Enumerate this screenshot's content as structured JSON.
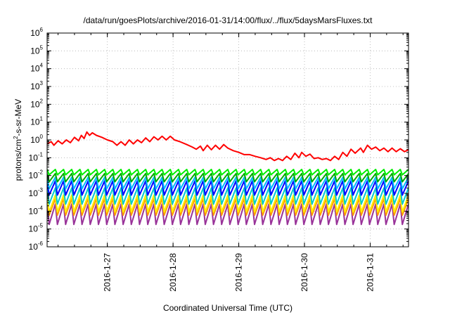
{
  "chart_data": {
    "type": "line",
    "title": "/data/run/goesPlots/archive/2016-01-31/14:00/flux/../flux/5daysMarsFluxes.txt",
    "xlabel": "Coordinated Universal Time (UTC)",
    "ylabel_parts": [
      "protons/cm",
      "2",
      "-s-sr-MeV"
    ],
    "y_scale": "log",
    "ylim": [
      1e-06,
      1000000.0
    ],
    "y_ticks": [
      {
        "base": "10",
        "exp": "-6",
        "value": 1e-06
      },
      {
        "base": "10",
        "exp": "-5",
        "value": 1e-05
      },
      {
        "base": "10",
        "exp": "-4",
        "value": 0.0001
      },
      {
        "base": "10",
        "exp": "-3",
        "value": 0.001
      },
      {
        "base": "10",
        "exp": "-2",
        "value": 0.01
      },
      {
        "base": "10",
        "exp": "-1",
        "value": 0.1
      },
      {
        "base": "10",
        "exp": "0",
        "value": 1
      },
      {
        "base": "10",
        "exp": "1",
        "value": 10
      },
      {
        "base": "10",
        "exp": "2",
        "value": 100
      },
      {
        "base": "10",
        "exp": "3",
        "value": 1000
      },
      {
        "base": "10",
        "exp": "4",
        "value": 10000
      },
      {
        "base": "10",
        "exp": "5",
        "value": 100000
      },
      {
        "base": "10",
        "exp": "6",
        "value": 1000000
      }
    ],
    "xlim": [
      "2016-01-26T02:00",
      "2016-01-31T14:00"
    ],
    "x_ticks": [
      {
        "label": "2016-1-27",
        "value": "2016-01-27T00:00"
      },
      {
        "label": "2016-1-28",
        "value": "2016-01-28T00:00"
      },
      {
        "label": "2016-1-29",
        "value": "2016-01-29T00:00"
      },
      {
        "label": "2016-1-30",
        "value": "2016-01-30T00:00"
      },
      {
        "label": "2016-1-31",
        "value": "2016-01-31T00:00"
      }
    ],
    "grid": true,
    "series": [
      {
        "color": "#ff0000",
        "points": [
          [
            "2016-01-26T02:00",
            0.6
          ],
          [
            "2016-01-26T03:30",
            0.8
          ],
          [
            "2016-01-26T04:30",
            0.5
          ],
          [
            "2016-01-26T06:00",
            0.9
          ],
          [
            "2016-01-26T07:30",
            0.6
          ],
          [
            "2016-01-26T09:00",
            1.0
          ],
          [
            "2016-01-26T10:30",
            0.7
          ],
          [
            "2016-01-26T12:00",
            1.4
          ],
          [
            "2016-01-26T13:30",
            0.9
          ],
          [
            "2016-01-26T14:30",
            1.8
          ],
          [
            "2016-01-26T15:30",
            1.2
          ],
          [
            "2016-01-26T16:30",
            2.8
          ],
          [
            "2016-01-26T17:30",
            1.8
          ],
          [
            "2016-01-26T18:30",
            2.5
          ],
          [
            "2016-01-26T20:00",
            1.8
          ],
          [
            "2016-01-26T22:00",
            1.4
          ],
          [
            "2016-01-27T00:00",
            1.0
          ],
          [
            "2016-01-27T02:00",
            0.8
          ],
          [
            "2016-01-27T03:30",
            0.5
          ],
          [
            "2016-01-27T05:00",
            0.8
          ],
          [
            "2016-01-27T06:30",
            0.5
          ],
          [
            "2016-01-27T08:00",
            1.0
          ],
          [
            "2016-01-27T09:30",
            0.6
          ],
          [
            "2016-01-27T11:00",
            1.0
          ],
          [
            "2016-01-27T12:30",
            0.7
          ],
          [
            "2016-01-27T14:00",
            1.3
          ],
          [
            "2016-01-27T15:30",
            0.8
          ],
          [
            "2016-01-27T17:00",
            1.5
          ],
          [
            "2016-01-27T18:30",
            1.0
          ],
          [
            "2016-01-27T20:00",
            1.6
          ],
          [
            "2016-01-27T21:30",
            1.0
          ],
          [
            "2016-01-27T23:00",
            1.6
          ],
          [
            "2016-01-28T00:30",
            1.0
          ],
          [
            "2016-01-28T02:30",
            0.8
          ],
          [
            "2016-01-28T05:00",
            0.55
          ],
          [
            "2016-01-28T07:00",
            0.4
          ],
          [
            "2016-01-28T08:30",
            0.3
          ],
          [
            "2016-01-28T10:00",
            0.45
          ],
          [
            "2016-01-28T11:00",
            0.25
          ],
          [
            "2016-01-28T12:30",
            0.5
          ],
          [
            "2016-01-28T14:00",
            0.28
          ],
          [
            "2016-01-28T15:30",
            0.5
          ],
          [
            "2016-01-28T17:00",
            0.3
          ],
          [
            "2016-01-28T18:30",
            0.55
          ],
          [
            "2016-01-28T20:00",
            0.35
          ],
          [
            "2016-01-28T22:00",
            0.25
          ],
          [
            "2016-01-29T00:00",
            0.2
          ],
          [
            "2016-01-29T02:00",
            0.15
          ],
          [
            "2016-01-29T04:00",
            0.15
          ],
          [
            "2016-01-29T06:00",
            0.12
          ],
          [
            "2016-01-29T08:00",
            0.1
          ],
          [
            "2016-01-29T10:00",
            0.08
          ],
          [
            "2016-01-29T11:30",
            0.1
          ],
          [
            "2016-01-29T13:00",
            0.07
          ],
          [
            "2016-01-29T14:30",
            0.09
          ],
          [
            "2016-01-29T16:00",
            0.07
          ],
          [
            "2016-01-29T17:30",
            0.12
          ],
          [
            "2016-01-29T19:00",
            0.08
          ],
          [
            "2016-01-29T20:30",
            0.18
          ],
          [
            "2016-01-29T22:00",
            0.1
          ],
          [
            "2016-01-29T23:00",
            0.2
          ],
          [
            "2016-01-30T00:30",
            0.12
          ],
          [
            "2016-01-30T02:00",
            0.16
          ],
          [
            "2016-01-30T03:30",
            0.09
          ],
          [
            "2016-01-30T05:00",
            0.1
          ],
          [
            "2016-01-30T06:30",
            0.08
          ],
          [
            "2016-01-30T08:00",
            0.09
          ],
          [
            "2016-01-30T09:30",
            0.07
          ],
          [
            "2016-01-30T11:00",
            0.12
          ],
          [
            "2016-01-30T12:30",
            0.08
          ],
          [
            "2016-01-30T14:00",
            0.2
          ],
          [
            "2016-01-30T15:30",
            0.12
          ],
          [
            "2016-01-30T17:00",
            0.3
          ],
          [
            "2016-01-30T18:30",
            0.18
          ],
          [
            "2016-01-30T20:30",
            0.35
          ],
          [
            "2016-01-30T21:30",
            0.2
          ],
          [
            "2016-01-30T23:00",
            0.5
          ],
          [
            "2016-01-31T00:30",
            0.3
          ],
          [
            "2016-01-31T02:00",
            0.4
          ],
          [
            "2016-01-31T03:30",
            0.25
          ],
          [
            "2016-01-31T05:00",
            0.35
          ],
          [
            "2016-01-31T06:30",
            0.22
          ],
          [
            "2016-01-31T08:00",
            0.35
          ],
          [
            "2016-01-31T09:30",
            0.22
          ],
          [
            "2016-01-31T11:00",
            0.32
          ],
          [
            "2016-01-31T12:30",
            0.22
          ],
          [
            "2016-01-31T14:00",
            0.28
          ]
        ]
      },
      {
        "color": "#00ee00",
        "low": 0.011,
        "high": 0.022
      },
      {
        "color": "#00aa00",
        "low": 0.0045,
        "high": 0.013
      },
      {
        "color": "#00bbff",
        "low": 0.0018,
        "high": 0.008
      },
      {
        "color": "#0000ff",
        "low": 0.0008,
        "high": 0.005
      },
      {
        "color": "#00cccc",
        "low": 0.00025,
        "high": 0.002
      },
      {
        "color": "#ffee00",
        "low": 9e-05,
        "high": 0.0008
      },
      {
        "color": "#ff9900",
        "low": 6e-05,
        "high": 0.0005
      },
      {
        "color": "#993399",
        "low": 1.8e-05,
        "high": 0.00025
      }
    ],
    "sawtooth_period_hours": 3
  }
}
